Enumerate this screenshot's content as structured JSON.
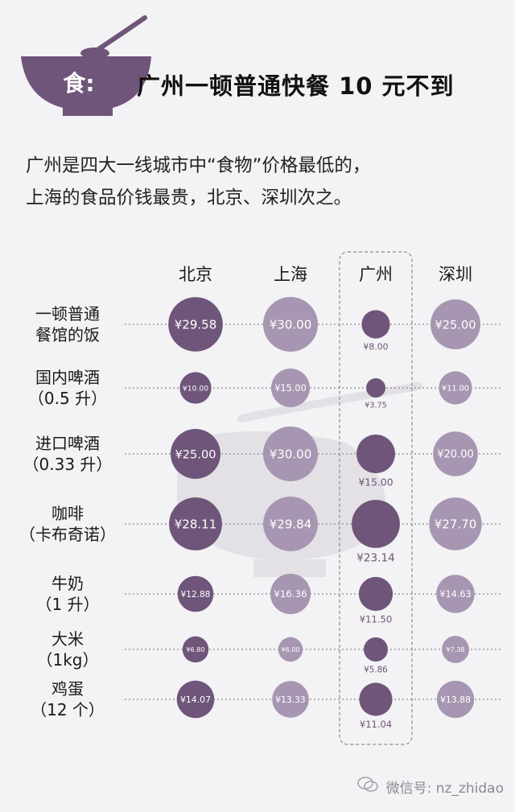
{
  "header": {
    "icon_char": "食:",
    "title": "广州一顿普通快餐 10 元不到"
  },
  "intro": {
    "line1": "广州是四大一线城市中“食物”价格最低的，",
    "line2": "上海的食品价钱最贵，北京、深圳次之。"
  },
  "chart_data": {
    "type": "bubble-table",
    "cities": [
      "北京",
      "上海",
      "广州",
      "深圳"
    ],
    "highlight_city": "广州",
    "currency_symbol": "¥",
    "items": [
      {
        "label_lines": [
          "一顿普通",
          "餐馆的饭"
        ],
        "values": [
          29.58,
          30.0,
          8.0,
          25.0
        ]
      },
      {
        "label_lines": [
          "国内啤酒",
          "（0.5 升）"
        ],
        "values": [
          10.0,
          15.0,
          3.75,
          11.0
        ]
      },
      {
        "label_lines": [
          "进口啤酒",
          "（0.33 升）"
        ],
        "values": [
          25.0,
          30.0,
          15.0,
          20.0
        ]
      },
      {
        "label_lines": [
          "咖啡",
          "（卡布奇诺）"
        ],
        "values": [
          28.11,
          29.84,
          23.14,
          27.7
        ]
      },
      {
        "label_lines": [
          "牛奶",
          "（1 升）"
        ],
        "values": [
          12.88,
          16.36,
          11.5,
          14.63
        ]
      },
      {
        "label_lines": [
          "大米",
          "（1kg）"
        ],
        "values": [
          6.8,
          6.0,
          5.86,
          7.38
        ]
      },
      {
        "label_lines": [
          "鸡蛋",
          "（12 个）"
        ],
        "values": [
          14.07,
          13.33,
          11.04,
          13.88
        ]
      }
    ],
    "colors": {
      "beijing": "#6e5579",
      "shanghai": "#a796b1",
      "guangzhou": "#6e5579",
      "shenzhen": "#a796b1",
      "dotted_line": "#8a8a8a",
      "watermark": "#e3e1e5"
    }
  },
  "footer": {
    "text": "微信号: nz_zhidao",
    "icon": "wechat-icon"
  }
}
